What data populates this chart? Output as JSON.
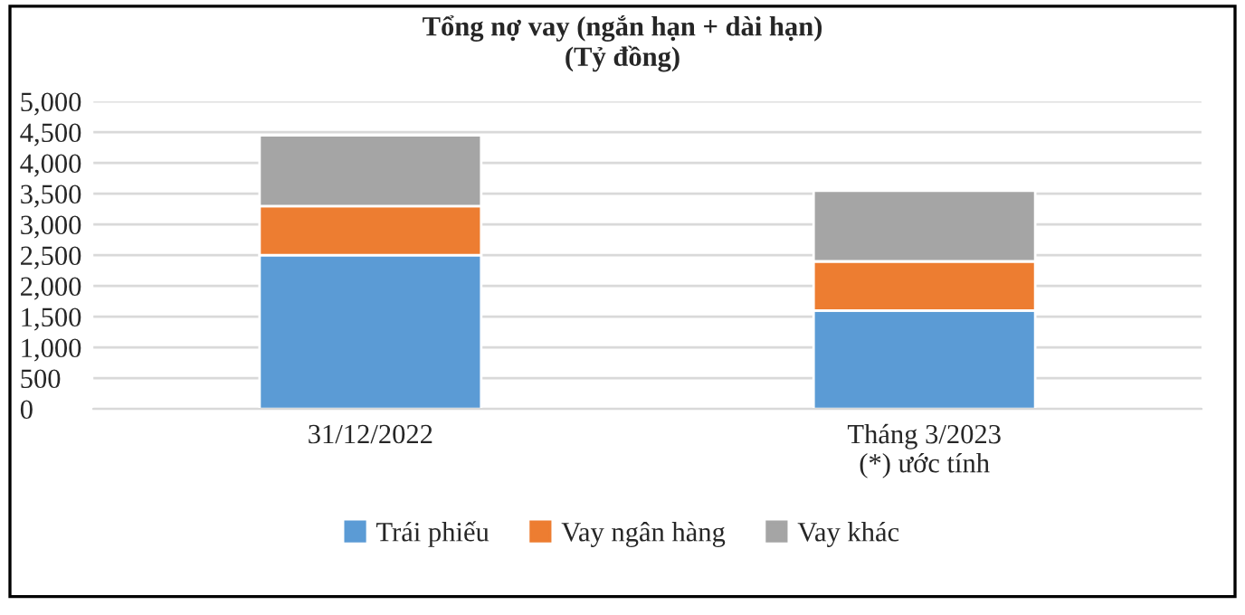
{
  "chart_data": {
    "type": "bar",
    "stacked": true,
    "title": "Tổng nợ vay (ngắn hạn + dài hạn)\n(Tỷ đồng)",
    "categories": [
      "31/12/2022",
      "Tháng 3/2023\n(*) ước tính"
    ],
    "series": [
      {
        "name": "Trái phiếu",
        "color": "#5b9bd5",
        "values": [
          2500,
          1600
        ]
      },
      {
        "name": "Vay ngân hàng",
        "color": "#ed7d31",
        "values": [
          800,
          800
        ]
      },
      {
        "name": "Vay khác",
        "color": "#a5a5a5",
        "values": [
          1150,
          1150
        ]
      }
    ],
    "ylim": [
      0,
      5000
    ],
    "yticks": [
      {
        "value": 0,
        "label": "0"
      },
      {
        "value": 500,
        "label": "500"
      },
      {
        "value": 1000,
        "label": "1,000"
      },
      {
        "value": 1500,
        "label": "1,500"
      },
      {
        "value": 2000,
        "label": "2,000"
      },
      {
        "value": 2500,
        "label": "2,500"
      },
      {
        "value": 3000,
        "label": "3,000"
      },
      {
        "value": 3500,
        "label": "3,500"
      },
      {
        "value": 4000,
        "label": "4,000"
      },
      {
        "value": 4500,
        "label": "4,500"
      },
      {
        "value": 5000,
        "label": "5,000"
      }
    ],
    "grid": "y",
    "legend": "bottom"
  }
}
